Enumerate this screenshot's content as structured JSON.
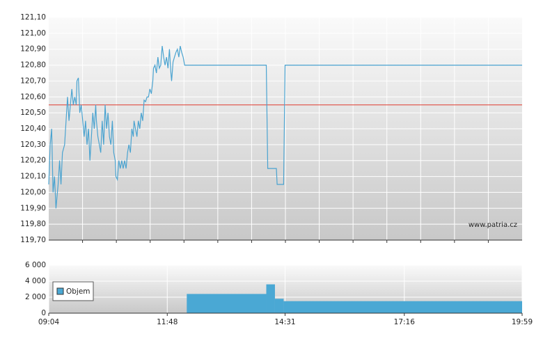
{
  "chart_data": {
    "type": "line",
    "watermark": "www.patria.cz",
    "xlim": [
      "09:04",
      "19:59"
    ],
    "xticks": [
      "09:04",
      "11:48",
      "14:31",
      "17:16",
      "19:59"
    ],
    "ylim": [
      119.7,
      121.1
    ],
    "yticks": [
      {
        "value": 119.7,
        "label": "119,70"
      },
      {
        "value": 119.8,
        "label": "119,80"
      },
      {
        "value": 119.9,
        "label": "119,90"
      },
      {
        "value": 120.0,
        "label": "120,00"
      },
      {
        "value": 120.1,
        "label": "120,10"
      },
      {
        "value": 120.2,
        "label": "120,20"
      },
      {
        "value": 120.3,
        "label": "120,30"
      },
      {
        "value": 120.4,
        "label": "120,40"
      },
      {
        "value": 120.5,
        "label": "120,50"
      },
      {
        "value": 120.6,
        "label": "120,60"
      },
      {
        "value": 120.7,
        "label": "120,70"
      },
      {
        "value": 120.8,
        "label": "120,80"
      },
      {
        "value": 120.9,
        "label": "120,90"
      },
      {
        "value": 121.0,
        "label": "121,00"
      },
      {
        "value": 121.1,
        "label": "121,10"
      }
    ],
    "grid": true,
    "reference_line": {
      "value": 120.55,
      "color": "#e03a2e"
    },
    "series": [
      {
        "color": "#4aa3d0",
        "x": [
          "09:04",
          "09:06",
          "09:08",
          "09:10",
          "09:12",
          "09:14",
          "09:17",
          "09:19",
          "09:21",
          "09:23",
          "09:26",
          "09:28",
          "09:30",
          "09:32",
          "09:34",
          "09:36",
          "09:38",
          "09:40",
          "09:42",
          "09:43",
          "09:45",
          "09:47",
          "09:49",
          "09:51",
          "09:53",
          "09:55",
          "09:57",
          "09:59",
          "10:01",
          "10:03",
          "10:05",
          "10:07",
          "10:09",
          "10:10",
          "10:12",
          "10:14",
          "10:16",
          "10:18",
          "10:20",
          "10:22",
          "10:24",
          "10:26",
          "10:28",
          "10:30",
          "10:32",
          "10:34",
          "10:36",
          "10:37",
          "10:39",
          "10:41",
          "10:43",
          "10:45",
          "10:47",
          "10:49",
          "10:51",
          "10:53",
          "10:55",
          "10:57",
          "10:59",
          "11:01",
          "11:02",
          "11:04",
          "11:06",
          "11:08",
          "11:10",
          "11:12",
          "11:14",
          "11:16",
          "11:18",
          "11:20",
          "11:22",
          "11:24",
          "11:26",
          "11:28",
          "11:29",
          "11:31",
          "11:33",
          "11:35",
          "11:37",
          "11:39",
          "11:41",
          "11:43",
          "11:45",
          "11:47",
          "11:49",
          "11:51",
          "11:53",
          "11:54",
          "11:56",
          "11:58",
          "12:00",
          "12:02",
          "12:04",
          "12:06",
          "12:08",
          "12:10",
          "12:12",
          "14:05",
          "14:07",
          "14:19",
          "14:20",
          "14:29",
          "14:31",
          "19:59"
        ],
        "values": [
          120.05,
          120.3,
          120.4,
          120.0,
          120.1,
          119.9,
          120.05,
          120.2,
          120.05,
          120.25,
          120.3,
          120.45,
          120.6,
          120.45,
          120.55,
          120.65,
          120.55,
          120.6,
          120.55,
          120.7,
          120.72,
          120.5,
          120.55,
          120.45,
          120.35,
          120.45,
          120.3,
          120.4,
          120.2,
          120.35,
          120.5,
          120.4,
          120.55,
          120.45,
          120.35,
          120.3,
          120.25,
          120.45,
          120.3,
          120.55,
          120.4,
          120.5,
          120.35,
          120.3,
          120.45,
          120.25,
          120.2,
          120.1,
          120.08,
          120.2,
          120.15,
          120.2,
          120.15,
          120.2,
          120.15,
          120.25,
          120.3,
          120.25,
          120.4,
          120.35,
          120.45,
          120.4,
          120.35,
          120.45,
          120.4,
          120.5,
          120.45,
          120.58,
          120.57,
          120.6,
          120.6,
          120.65,
          120.62,
          120.7,
          120.78,
          120.8,
          120.75,
          120.85,
          120.78,
          120.8,
          120.92,
          120.85,
          120.8,
          120.85,
          120.78,
          120.9,
          120.75,
          120.7,
          120.82,
          120.85,
          120.88,
          120.9,
          120.85,
          120.92,
          120.88,
          120.85,
          120.8,
          120.8,
          120.15,
          120.15,
          120.05,
          120.05,
          120.8,
          120.8
        ]
      }
    ],
    "volume": {
      "type": "bar",
      "name": "Objem",
      "color": "#4aa8d4",
      "bins": [
        "12:15",
        "14:05",
        "14:17",
        "14:29",
        "19:59"
      ],
      "values": [
        2400,
        3600,
        1800,
        1500
      ],
      "ylim": [
        0,
        6000
      ],
      "yticks": [
        0,
        {
          "value": 2000,
          "label": "2 000"
        },
        {
          "value": 4000,
          "label": "4 000"
        },
        {
          "value": 6000,
          "label": "6 000"
        }
      ]
    }
  }
}
